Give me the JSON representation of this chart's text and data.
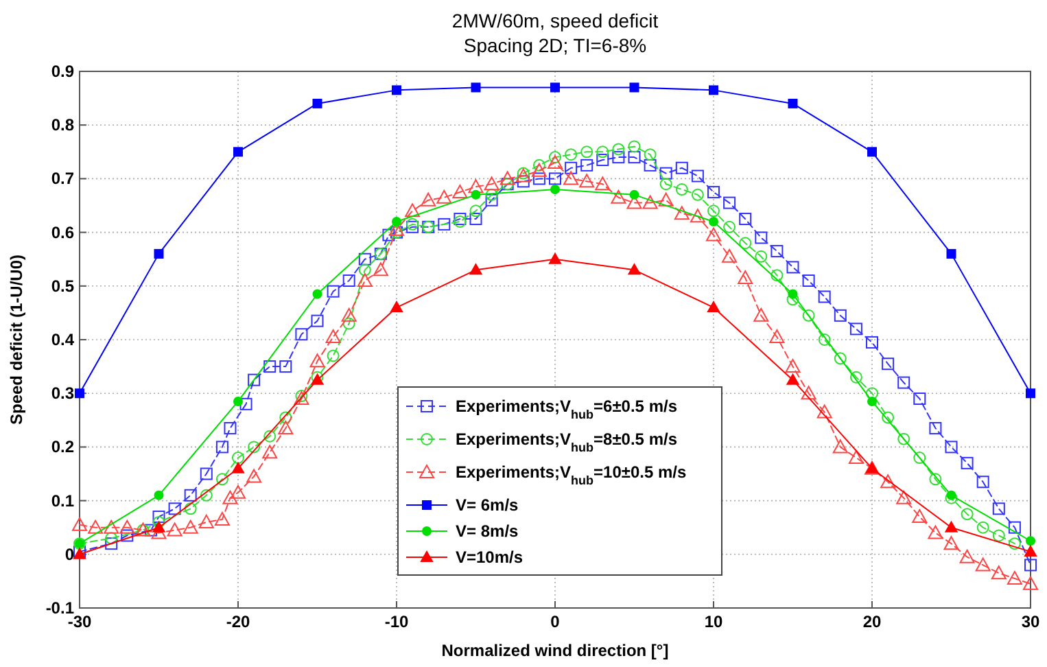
{
  "chart_data": {
    "type": "line",
    "title": "2MW/60m, speed deficit",
    "subtitle": "Spacing 2D; TI=6-8%",
    "xlabel": "Normalized wind direction [°]",
    "ylabel": "Speed deficit (1-U/U0)",
    "xlim": [
      -30,
      30
    ],
    "ylim": [
      -0.1,
      0.9
    ],
    "xticks": [
      -30,
      -20,
      -10,
      0,
      10,
      20,
      30
    ],
    "yticks": [
      -0.1,
      0,
      0.1,
      0.2,
      0.3,
      0.4,
      0.5,
      0.6,
      0.7,
      0.8,
      0.9
    ],
    "grid": true,
    "legend": "bottom",
    "series": [
      {
        "name": "Experiments;V$_{hub}$=6±0.5 m/s",
        "color": "#3333ff",
        "marker": "square",
        "line_style": "dashed",
        "x": [
          -30,
          -28,
          -27,
          -25.5,
          -25,
          -24,
          -23,
          -22,
          -21,
          -20.5,
          -19.5,
          -19,
          -18,
          -17,
          -16,
          -15,
          -14,
          -13,
          -12,
          -11,
          -10.5,
          -10,
          -9,
          -8,
          -7,
          -6,
          -5,
          -4,
          -3,
          -2,
          -1,
          0,
          1,
          2,
          3,
          4,
          5,
          6,
          7,
          8,
          9,
          10,
          11,
          12,
          13,
          14,
          15,
          16,
          17,
          18,
          19,
          20,
          21,
          22,
          23,
          24,
          25,
          26,
          27,
          28,
          29,
          30
        ],
        "values": [
          0.005,
          0.02,
          0.035,
          0.045,
          0.07,
          0.085,
          0.11,
          0.15,
          0.2,
          0.235,
          0.28,
          0.325,
          0.35,
          0.35,
          0.41,
          0.435,
          0.49,
          0.51,
          0.55,
          0.56,
          0.595,
          0.6,
          0.61,
          0.61,
          0.615,
          0.625,
          0.625,
          0.66,
          0.69,
          0.695,
          0.7,
          0.7,
          0.72,
          0.725,
          0.735,
          0.74,
          0.74,
          0.725,
          0.71,
          0.72,
          0.705,
          0.675,
          0.655,
          0.625,
          0.59,
          0.565,
          0.535,
          0.51,
          0.48,
          0.445,
          0.42,
          0.395,
          0.355,
          0.32,
          0.29,
          0.235,
          0.2,
          0.17,
          0.135,
          0.085,
          0.05,
          -0.02
        ]
      },
      {
        "name": "Experiments;V$_{hub}$=8±0.5 m/s",
        "color": "#33dd33",
        "marker": "circle",
        "line_style": "dashed",
        "x": [
          -30,
          -28,
          -26,
          -25,
          -23,
          -22,
          -21,
          -20,
          -19,
          -18,
          -17,
          -16,
          -15,
          -14,
          -13,
          -12,
          -11,
          -10,
          -9,
          -8,
          -6,
          -5,
          -4,
          -3,
          -2,
          -1,
          0,
          1,
          2,
          3,
          4,
          5,
          6,
          7,
          8,
          9,
          10,
          11,
          12,
          13,
          14,
          15,
          16,
          17,
          18,
          19,
          20,
          21,
          22,
          23,
          24,
          25,
          26,
          27,
          28,
          29
        ],
        "values": [
          0.02,
          0.03,
          0.045,
          0.06,
          0.085,
          0.11,
          0.14,
          0.18,
          0.2,
          0.22,
          0.255,
          0.295,
          0.33,
          0.37,
          0.43,
          0.53,
          0.56,
          0.6,
          0.615,
          0.61,
          0.62,
          0.64,
          0.67,
          0.69,
          0.71,
          0.725,
          0.74,
          0.745,
          0.75,
          0.75,
          0.755,
          0.76,
          0.745,
          0.69,
          0.68,
          0.67,
          0.64,
          0.61,
          0.58,
          0.555,
          0.52,
          0.475,
          0.445,
          0.4,
          0.365,
          0.33,
          0.3,
          0.255,
          0.215,
          0.18,
          0.14,
          0.105,
          0.075,
          0.05,
          0.035,
          0.02
        ]
      },
      {
        "name": "Experiments;V$_{hub}$=10±0.5 m/s",
        "color": "#ff4444",
        "marker": "triangle",
        "line_style": "dashed",
        "x": [
          -30,
          -29,
          -28,
          -27,
          -26,
          -25,
          -24,
          -23,
          -22,
          -21,
          -20.5,
          -20,
          -19,
          -18,
          -17,
          -16,
          -15,
          -14,
          -13,
          -12,
          -11,
          -10,
          -9,
          -8,
          -7,
          -6,
          -5,
          -4,
          -3,
          -2,
          -1,
          0,
          1,
          2,
          3,
          4,
          5,
          6,
          7,
          8,
          9,
          10,
          11,
          12,
          13,
          14,
          15,
          16,
          17,
          18,
          19,
          20,
          21,
          22,
          23,
          24,
          25,
          26,
          27,
          28,
          29,
          30
        ],
        "values": [
          0.055,
          0.05,
          0.05,
          0.05,
          0.045,
          0.04,
          0.045,
          0.05,
          0.06,
          0.065,
          0.105,
          0.115,
          0.145,
          0.19,
          0.235,
          0.29,
          0.36,
          0.405,
          0.445,
          0.51,
          0.53,
          0.605,
          0.64,
          0.66,
          0.665,
          0.675,
          0.685,
          0.69,
          0.7,
          0.705,
          0.715,
          0.73,
          0.7,
          0.695,
          0.69,
          0.665,
          0.655,
          0.655,
          0.66,
          0.635,
          0.63,
          0.595,
          0.555,
          0.515,
          0.445,
          0.405,
          0.35,
          0.3,
          0.265,
          0.2,
          0.18,
          0.16,
          0.135,
          0.105,
          0.07,
          0.04,
          0.02,
          -0.005,
          -0.02,
          -0.035,
          -0.045,
          -0.055
        ]
      },
      {
        "name": "V= 6m/s",
        "color": "#0000ff",
        "marker": "square",
        "line_style": "solid",
        "x": [
          -30,
          -25,
          -20,
          -15,
          -10,
          -5,
          0,
          5,
          10,
          15,
          20,
          25,
          30
        ],
        "values": [
          0.3,
          0.56,
          0.75,
          0.84,
          0.865,
          0.87,
          0.87,
          0.87,
          0.865,
          0.84,
          0.75,
          0.56,
          0.3
        ]
      },
      {
        "name": "V= 8m/s",
        "color": "#00dd00",
        "marker": "circle",
        "line_style": "solid",
        "x": [
          -30,
          -25,
          -20,
          -15,
          -10,
          -5,
          0,
          5,
          10,
          15,
          20,
          25,
          30
        ],
        "values": [
          0.02,
          0.11,
          0.285,
          0.485,
          0.62,
          0.67,
          0.68,
          0.67,
          0.62,
          0.485,
          0.285,
          0.11,
          0.025
        ]
      },
      {
        "name": "V=10m/s",
        "color": "#ff0000",
        "marker": "triangle",
        "line_style": "solid",
        "x": [
          -30,
          -25,
          -20,
          -15,
          -10,
          -5,
          0,
          5,
          10,
          15,
          20,
          25,
          30
        ],
        "values": [
          0.0,
          0.05,
          0.16,
          0.325,
          0.46,
          0.53,
          0.55,
          0.53,
          0.46,
          0.325,
          0.16,
          0.05,
          0.005
        ]
      }
    ]
  }
}
